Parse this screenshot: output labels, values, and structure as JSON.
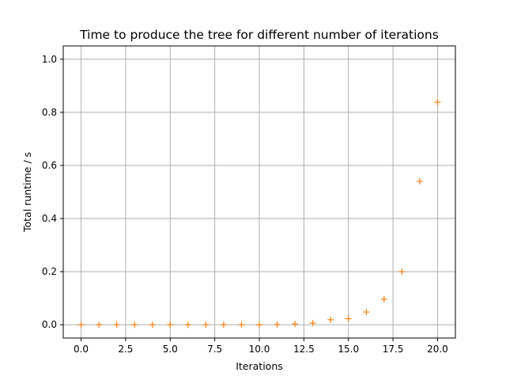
{
  "chart_data": {
    "type": "scatter",
    "title": "Time to produce the tree for different number of iterations",
    "xlabel": "Iterations",
    "ylabel": "Total runtime / s",
    "xlim": [
      -1.0,
      21.0
    ],
    "ylim": [
      -0.05,
      1.05
    ],
    "xticks": [
      0.0,
      2.5,
      5.0,
      7.5,
      10.0,
      12.5,
      15.0,
      17.5,
      20.0
    ],
    "xtick_labels": [
      "0.0",
      "2.5",
      "5.0",
      "7.5",
      "10.0",
      "12.5",
      "15.0",
      "17.5",
      "20.0"
    ],
    "yticks": [
      0.0,
      0.2,
      0.4,
      0.6,
      0.8,
      1.0
    ],
    "ytick_labels": [
      "0.0",
      "0.2",
      "0.4",
      "0.6",
      "0.8",
      "1.0"
    ],
    "grid": true,
    "marker": "+",
    "color": "#ff7f0e",
    "series": [
      {
        "x": [
          0,
          1,
          2,
          3,
          4,
          5,
          6,
          7,
          8,
          9,
          10,
          11,
          12,
          13,
          14,
          15,
          16,
          17,
          18,
          19,
          20
        ],
        "values": [
          0.0,
          0.0,
          0.0,
          0.0,
          0.0,
          0.0,
          0.0,
          0.0,
          0.0,
          0.0,
          0.0,
          0.001,
          0.003,
          0.006,
          0.019,
          0.023,
          0.048,
          0.096,
          0.2,
          0.54,
          0.838
        ]
      }
    ]
  }
}
